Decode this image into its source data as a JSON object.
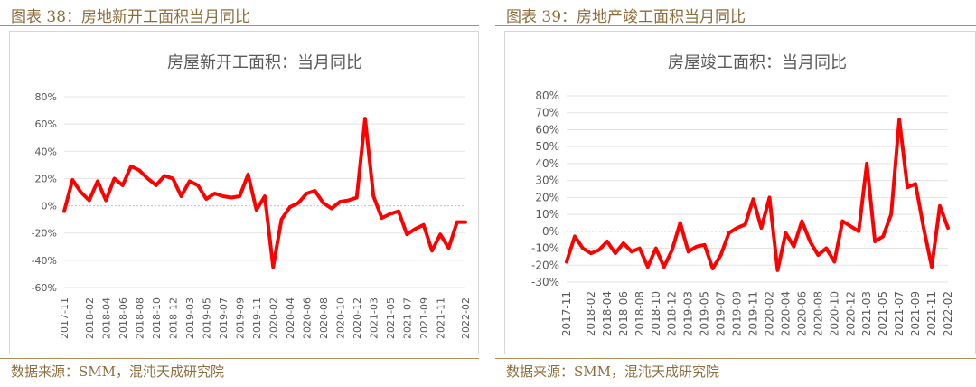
{
  "panels": [
    {
      "caption": "图表 38：房地新开工面积当月同比",
      "source": "数据来源：SMM，混沌天成研究院",
      "chart_data": {
        "type": "line",
        "title": "房屋新开工面积：当月同比",
        "y_ticks": [
          "80%",
          "60%",
          "40%",
          "20%",
          "0%",
          "-20%",
          "-40%",
          "-60%"
        ],
        "ylim": [
          -60,
          80
        ],
        "grid": true,
        "x_tick_labels": [
          "2017-11",
          "2018-02",
          "2018-04",
          "2018-06",
          "2018-08",
          "2018-10",
          "2018-12",
          "2019-03",
          "2019-05",
          "2019-07",
          "2019-09",
          "2019-11",
          "2020-02",
          "2020-04",
          "2020-06",
          "2020-08",
          "2020-10",
          "2020-12",
          "2021-03",
          "2021-05",
          "2021-07",
          "2021-09",
          "2021-11",
          "2022-02"
        ],
        "x": [
          "2017-11",
          "2017-12",
          "2018-01",
          "2018-02",
          "2018-03",
          "2018-04",
          "2018-05",
          "2018-06",
          "2018-07",
          "2018-08",
          "2018-09",
          "2018-10",
          "2018-11",
          "2018-12",
          "2019-01",
          "2019-03",
          "2019-04",
          "2019-05",
          "2019-06",
          "2019-07",
          "2019-08",
          "2019-09",
          "2019-10",
          "2019-11",
          "2019-12",
          "2020-02",
          "2020-03",
          "2020-04",
          "2020-05",
          "2020-06",
          "2020-07",
          "2020-08",
          "2020-09",
          "2020-10",
          "2020-11",
          "2020-12",
          "2021-01",
          "2021-03",
          "2021-04",
          "2021-05",
          "2021-06",
          "2021-07",
          "2021-08",
          "2021-09",
          "2021-10",
          "2021-11",
          "2021-12",
          "2022-01",
          "2022-02"
        ],
        "series": [
          {
            "color": "#ff0000",
            "values": [
              -4,
              19,
              10,
              4,
              18,
              4,
              20,
              15,
              29,
              26,
              20,
              15,
              22,
              20,
              7,
              18,
              15,
              5,
              9,
              7,
              6,
              7,
              23,
              -3,
              7,
              -45,
              -10,
              -1,
              2,
              9,
              11,
              2,
              -2,
              3,
              4,
              6,
              64,
              7,
              -9,
              -6,
              -4,
              -21,
              -17,
              -14,
              -33,
              -21,
              -31,
              -12,
              -12
            ]
          }
        ]
      }
    },
    {
      "caption": "图表 39：房地产竣工面积当月同比",
      "source": "数据来源：SMM，混沌天成研究院",
      "chart_data": {
        "type": "line",
        "title": "房屋竣工面积：当月同比",
        "y_ticks": [
          "80%",
          "70%",
          "60%",
          "50%",
          "40%",
          "30%",
          "20%",
          "10%",
          "0%",
          "-10%",
          "-20%",
          "-30%"
        ],
        "ylim": [
          -30,
          80
        ],
        "grid": true,
        "x_tick_labels": [
          "2017-11",
          "2018-02",
          "2018-04",
          "2018-06",
          "2018-08",
          "2018-10",
          "2018-12",
          "2019-03",
          "2019-05",
          "2019-07",
          "2019-09",
          "2019-11",
          "2020-02",
          "2020-04",
          "2020-06",
          "2020-08",
          "2020-10",
          "2020-12",
          "2021-03",
          "2021-05",
          "2021-07",
          "2021-09",
          "2021-11",
          "2022-02"
        ],
        "x": [
          "2017-11",
          "2017-12",
          "2018-01",
          "2018-02",
          "2018-03",
          "2018-04",
          "2018-05",
          "2018-06",
          "2018-07",
          "2018-08",
          "2018-09",
          "2018-10",
          "2018-11",
          "2018-12",
          "2019-01",
          "2019-03",
          "2019-04",
          "2019-05",
          "2019-06",
          "2019-07",
          "2019-08",
          "2019-09",
          "2019-10",
          "2019-11",
          "2019-12",
          "2020-02",
          "2020-03",
          "2020-04",
          "2020-05",
          "2020-06",
          "2020-07",
          "2020-08",
          "2020-09",
          "2020-10",
          "2020-11",
          "2020-12",
          "2021-01",
          "2021-03",
          "2021-04",
          "2021-05",
          "2021-06",
          "2021-07",
          "2021-08",
          "2021-09",
          "2021-10",
          "2021-11",
          "2022-01",
          "2022-02"
        ],
        "series": [
          {
            "color": "#ff0000",
            "values": [
              -18,
              -3,
              -10,
              -13,
              -11,
              -6,
              -13,
              -7,
              -12,
              -10,
              -21,
              -10,
              -21,
              -11,
              5,
              -12,
              -9,
              -8,
              -22,
              -14,
              -1,
              2,
              4,
              19,
              2,
              20,
              -23,
              -1,
              -9,
              6,
              -6,
              -14,
              -10,
              -18,
              6,
              3,
              0,
              40,
              -6,
              -3,
              10,
              66,
              26,
              28,
              2,
              -21,
              15,
              2
            ]
          }
        ]
      }
    }
  ]
}
